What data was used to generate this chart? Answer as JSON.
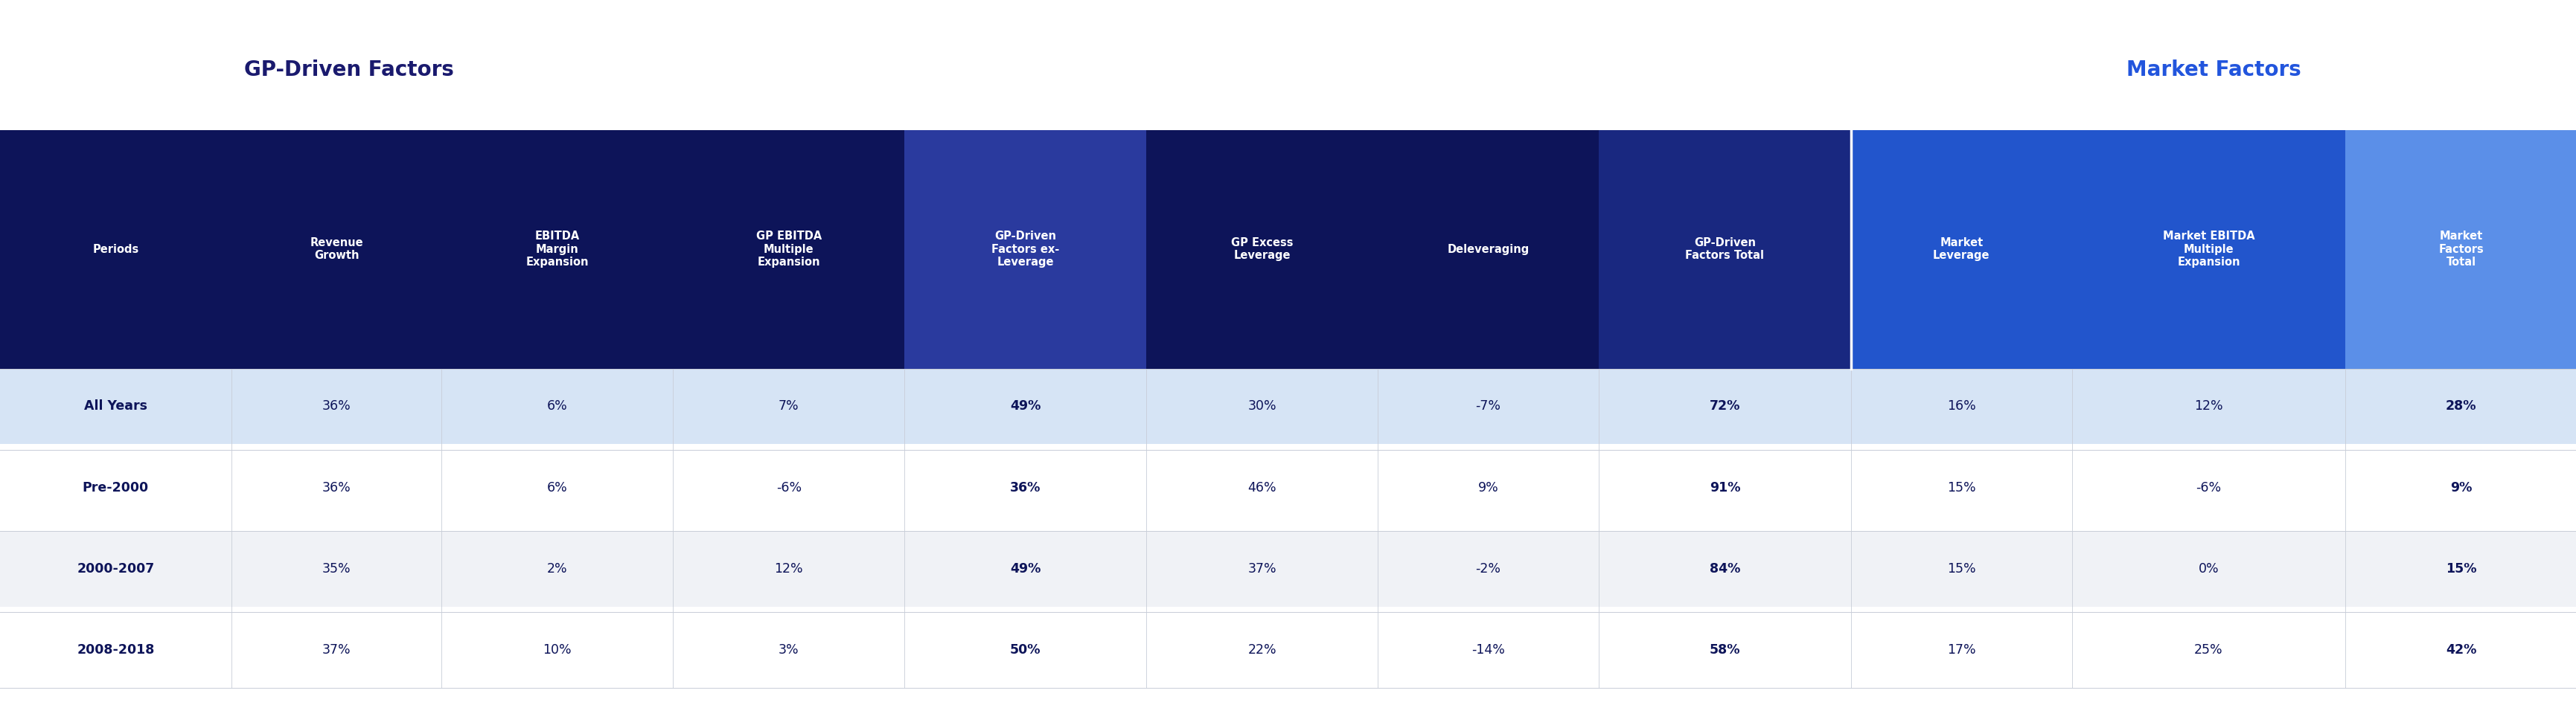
{
  "title_gp": "GP-Driven Factors",
  "title_market": "Market Factors",
  "title_gp_color": "#1a1a6e",
  "title_market_color": "#2255dd",
  "col_headers": [
    "Periods",
    "Revenue\nGrowth",
    "EBITDA\nMargin\nExpansion",
    "GP EBITDA\nMultiple\nExpansion",
    "GP-Driven\nFactors ex-\nLeverage",
    "GP Excess\nLeverage",
    "Deleveraging",
    "GP-Driven\nFactors Total",
    "Market\nLeverage",
    "Market EBITDA\nMultiple\nExpansion",
    "Market\nFactors\nTotal"
  ],
  "rows": [
    [
      "All Years",
      "36%",
      "6%",
      "7%",
      "49%",
      "30%",
      "-7%",
      "72%",
      "16%",
      "12%",
      "28%"
    ],
    [
      "Pre-2000",
      "36%",
      "6%",
      "-6%",
      "36%",
      "46%",
      "9%",
      "91%",
      "15%",
      "-6%",
      "9%"
    ],
    [
      "2000-2007",
      "35%",
      "2%",
      "12%",
      "49%",
      "37%",
      "-2%",
      "84%",
      "15%",
      "0%",
      "15%"
    ],
    [
      "2008-2018",
      "37%",
      "10%",
      "3%",
      "50%",
      "22%",
      "-14%",
      "58%",
      "17%",
      "25%",
      "42%"
    ]
  ],
  "bold_cols": [
    4,
    7,
    10
  ],
  "header_colors": [
    "#0d1459",
    "#0d1459",
    "#0d1459",
    "#0d1459",
    "#2a3a9e",
    "#0d1459",
    "#0d1459",
    "#192880",
    "#2255cc",
    "#2255cc",
    "#5b8fe8"
  ],
  "header_text_color": "#ffffff",
  "row_bg_all_years": "#d6e4f5",
  "row_bg_white": "#ffffff",
  "row_bg_gray": "#f0f2f6",
  "data_text_color": "#0d1459",
  "col_widths": [
    1.1,
    1.0,
    1.1,
    1.1,
    1.15,
    1.1,
    1.05,
    1.2,
    1.05,
    1.3,
    1.1
  ],
  "fig_width": 34.62,
  "fig_height": 9.44
}
